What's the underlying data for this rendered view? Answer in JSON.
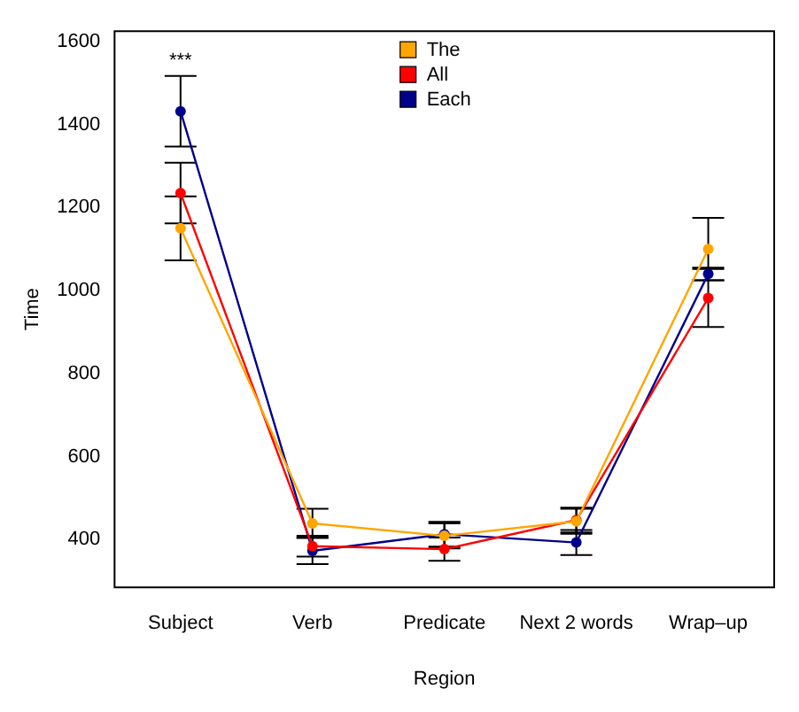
{
  "chart_data": {
    "type": "line",
    "xlabel": "Region",
    "ylabel": "Time",
    "categories": [
      "Subject",
      "Verb",
      "Predicate",
      "Next 2 words",
      "Wrap–up"
    ],
    "series": [
      {
        "name": "The",
        "color": "#ffa500",
        "values": [
          1150,
          439,
          409,
          444,
          1100
        ],
        "errors": [
          77,
          35,
          30,
          30,
          75
        ]
      },
      {
        "name": "All",
        "color": "#ff0000",
        "values": [
          1235,
          384,
          377,
          447,
          982
        ],
        "errors": [
          73,
          25,
          28,
          30,
          70
        ]
      },
      {
        "name": "Each",
        "color": "#00008b",
        "values": [
          1432,
          373,
          413,
          393,
          1040
        ],
        "errors": [
          85,
          32,
          30,
          30,
          15
        ]
      }
    ],
    "ylim": [
      285,
      1625
    ],
    "yticks": [
      400,
      600,
      800,
      1000,
      1200,
      1400,
      1600
    ],
    "annotations": [
      "***"
    ],
    "marker": "circle",
    "line_style": "solid",
    "grid": false,
    "legend": "top"
  }
}
